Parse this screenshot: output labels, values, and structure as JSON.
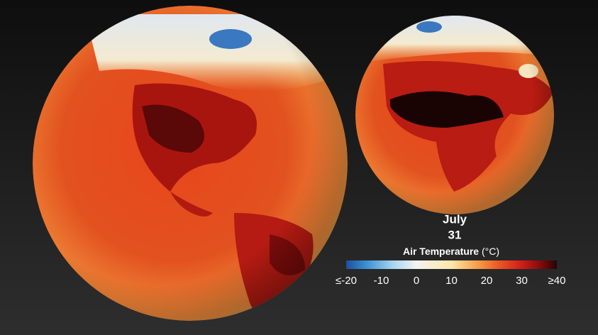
{
  "date": {
    "month": "July",
    "day": "31"
  },
  "legend": {
    "title": "Air Temperature",
    "unit": "(°C)",
    "range": [
      -20,
      40
    ],
    "ticks": [
      {
        "value": -20,
        "label": "≤-20"
      },
      -10,
      0,
      10,
      20,
      30,
      {
        "value": 40,
        "label": "≥40"
      }
    ]
  }
}
